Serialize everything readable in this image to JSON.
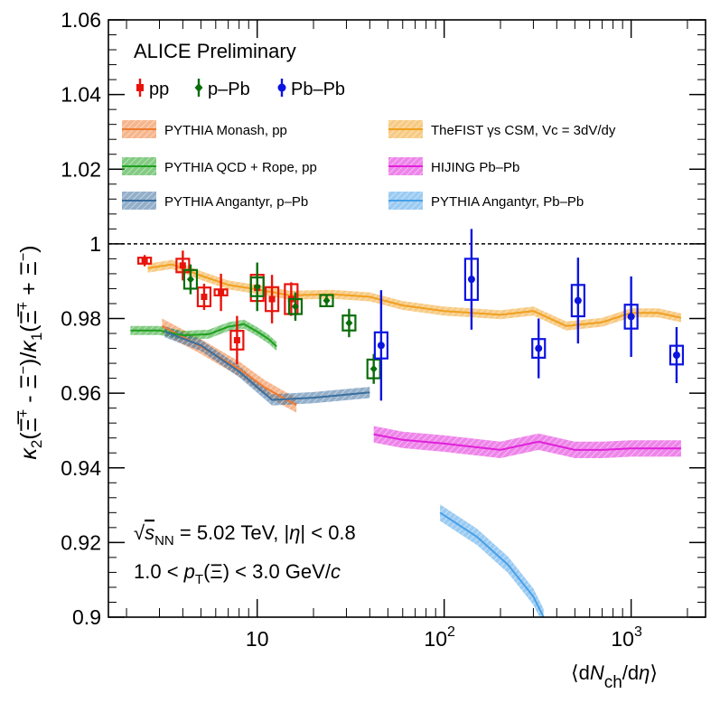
{
  "chart_data": {
    "type": "scatter",
    "title": "ALICE Preliminary",
    "xlabel": "⟨dN_ch/dη⟩",
    "ylabel": "κ2(Ξ+ − Ξ−)/κ1(Ξ+ + Ξ−)",
    "x_scale": "log",
    "xlim": [
      1.6,
      2500
    ],
    "ylim": [
      0.9,
      1.06
    ],
    "y_ticks": [
      "0.9",
      "0.92",
      "0.94",
      "0.96",
      "0.98",
      "1",
      "1.02",
      "1.04",
      "1.06"
    ],
    "x_ticks": [
      {
        "value": 10,
        "base": "10",
        "exp": ""
      },
      {
        "value": 100,
        "base": "10",
        "exp": "2"
      },
      {
        "value": 1000,
        "base": "10",
        "exp": "3"
      }
    ],
    "reference_line": {
      "y": 1,
      "style": "dashed"
    },
    "annotations": {
      "energy": "√s_NN = 5.02 TeV, |η| < 0.8",
      "pt_range": "1.0 < p_T(Ξ) < 3.0 GeV/c"
    },
    "series": [
      {
        "name": "pp",
        "color": "#e8140c",
        "marker": "square",
        "points": [
          {
            "x": 2.5,
            "y": 0.9955,
            "stat": 0.0015,
            "sys": 0.0008
          },
          {
            "x": 4.0,
            "y": 0.9942,
            "stat": 0.004,
            "sys": 0.0018
          },
          {
            "x": 5.2,
            "y": 0.9858,
            "stat": 0.0035,
            "sys": 0.0025
          },
          {
            "x": 6.4,
            "y": 0.987,
            "stat": 0.005,
            "sys": 0.0008
          },
          {
            "x": 7.8,
            "y": 0.9742,
            "stat": 0.0065,
            "sys": 0.0025
          },
          {
            "x": 10.0,
            "y": 0.9882,
            "stat": 0.003,
            "sys": 0.0035
          },
          {
            "x": 12.0,
            "y": 0.9852,
            "stat": 0.0065,
            "sys": 0.0032
          },
          {
            "x": 15.2,
            "y": 0.9852,
            "stat": 0.0045,
            "sys": 0.004
          }
        ]
      },
      {
        "name": "p–Pb",
        "color": "#0a6e0a",
        "marker": "diamond",
        "points": [
          {
            "x": 4.4,
            "y": 0.9905,
            "stat": 0.004,
            "sys": 0.0025
          },
          {
            "x": 10.0,
            "y": 0.9885,
            "stat": 0.0065,
            "sys": 0.0025
          },
          {
            "x": 16.0,
            "y": 0.9832,
            "stat": 0.0038,
            "sys": 0.002
          },
          {
            "x": 23.5,
            "y": 0.9848,
            "stat": 0.0015,
            "sys": 0.0015
          },
          {
            "x": 31.0,
            "y": 0.9788,
            "stat": 0.0038,
            "sys": 0.002
          },
          {
            "x": 42.0,
            "y": 0.9665,
            "stat": 0.004,
            "sys": 0.0025
          }
        ]
      },
      {
        "name": "Pb–Pb",
        "color": "#0c14e0",
        "marker": "circle",
        "points": [
          {
            "x": 46.0,
            "y": 0.9728,
            "stat": 0.0148,
            "sys": 0.0035
          },
          {
            "x": 140.0,
            "y": 0.9905,
            "stat": 0.0135,
            "sys": 0.0055
          },
          {
            "x": 320.0,
            "y": 0.972,
            "stat": 0.008,
            "sys": 0.0025
          },
          {
            "x": 520.0,
            "y": 0.9848,
            "stat": 0.0115,
            "sys": 0.0042
          },
          {
            "x": 1000.0,
            "y": 0.9805,
            "stat": 0.0108,
            "sys": 0.0032
          },
          {
            "x": 1750.0,
            "y": 0.9702,
            "stat": 0.0075,
            "sys": 0.0025
          }
        ]
      }
    ],
    "models": [
      {
        "name": "PYTHIA Monash, pp",
        "color": "#ee7a30",
        "band": 0.002,
        "points": [
          [
            3.1,
            0.978
          ],
          [
            5.0,
            0.9725
          ],
          [
            8.0,
            0.9665
          ],
          [
            11.0,
            0.9615
          ],
          [
            14.0,
            0.9585
          ],
          [
            16.2,
            0.9568
          ]
        ]
      },
      {
        "name": "TheFIST γs CSM, Vc = 3dV/dy",
        "color": "#f0a020",
        "band": 0.0012,
        "points": [
          [
            2.6,
            0.9935
          ],
          [
            3.5,
            0.9945
          ],
          [
            5.0,
            0.9915
          ],
          [
            7.0,
            0.989
          ],
          [
            10.0,
            0.9878
          ],
          [
            15.0,
            0.9862
          ],
          [
            25.0,
            0.9865
          ],
          [
            40.0,
            0.9858
          ],
          [
            60.0,
            0.9835
          ],
          [
            100.0,
            0.982
          ],
          [
            200.0,
            0.981
          ],
          [
            300.0,
            0.982
          ],
          [
            450.0,
            0.978
          ],
          [
            700.0,
            0.979
          ],
          [
            1000.0,
            0.9815
          ],
          [
            1400.0,
            0.9815
          ],
          [
            1850.0,
            0.9802
          ]
        ]
      },
      {
        "name": "PYTHIA QCD + Rope, pp",
        "color": "#1ea01e",
        "band": 0.0012,
        "points": [
          [
            2.1,
            0.9768
          ],
          [
            3.0,
            0.9768
          ],
          [
            4.0,
            0.9755
          ],
          [
            5.5,
            0.9758
          ],
          [
            7.0,
            0.9778
          ],
          [
            8.5,
            0.9785
          ],
          [
            10.0,
            0.9765
          ],
          [
            11.5,
            0.9745
          ],
          [
            12.7,
            0.9725
          ]
        ]
      },
      {
        "name": "HIJING Pb–Pb",
        "color": "#e020d8",
        "band": 0.0022,
        "points": [
          [
            42.0,
            0.949
          ],
          [
            60.0,
            0.9475
          ],
          [
            100.0,
            0.9465
          ],
          [
            150.0,
            0.9455
          ],
          [
            200.0,
            0.9448
          ],
          [
            320.0,
            0.947
          ],
          [
            500.0,
            0.9448
          ],
          [
            700.0,
            0.9448
          ],
          [
            1000.0,
            0.9452
          ],
          [
            1400.0,
            0.9452
          ],
          [
            1850.0,
            0.9452
          ]
        ]
      },
      {
        "name": "PYTHIA Angantyr, p–Pb",
        "color": "#3a6e9e",
        "band": 0.0015,
        "points": [
          [
            3.2,
            0.9765
          ],
          [
            5.0,
            0.9728
          ],
          [
            8.0,
            0.9658
          ],
          [
            12.0,
            0.9582
          ],
          [
            20.0,
            0.9588
          ],
          [
            40.0,
            0.9602
          ]
        ]
      },
      {
        "name": "PYTHIA Angantyr, Pb–Pb",
        "color": "#48a0e8",
        "band": 0.0022,
        "points": [
          [
            95.0,
            0.928
          ],
          [
            150.0,
            0.9215
          ],
          [
            220.0,
            0.914
          ],
          [
            300.0,
            0.9055
          ],
          [
            340.0,
            0.9
          ]
        ]
      }
    ]
  }
}
